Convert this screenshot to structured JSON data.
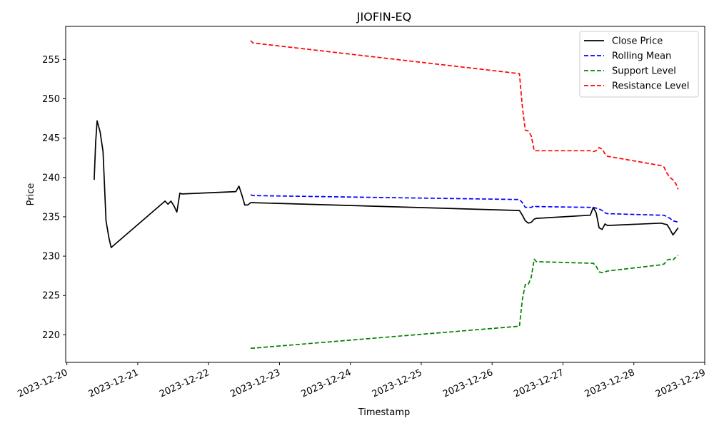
{
  "chart_data": {
    "type": "line",
    "title": "JIOFIN-EQ",
    "xlabel": "Timestamp",
    "ylabel": "Price",
    "x_axis_type": "date",
    "xlim": [
      "2023-12-19T23:36",
      "2023-12-29T00:00"
    ],
    "ylim": [
      216.5,
      259.2
    ],
    "x_ticks": [
      "2023-12-20",
      "2023-12-21",
      "2023-12-22",
      "2023-12-23",
      "2023-12-24",
      "2023-12-25",
      "2023-12-26",
      "2023-12-27",
      "2023-12-28",
      "2023-12-29"
    ],
    "y_ticks": [
      220,
      225,
      230,
      235,
      240,
      245,
      250,
      255
    ],
    "grid": false,
    "legend_position": "top-right",
    "series": [
      {
        "name": "Close Price",
        "color": "#000000",
        "dash": "solid",
        "points": [
          [
            "2023-12-20T09:15",
            239.7
          ],
          [
            "2023-12-20T09:45",
            244.5
          ],
          [
            "2023-12-20T10:15",
            247.2
          ],
          [
            "2023-12-20T11:15",
            245.8
          ],
          [
            "2023-12-20T12:15",
            243.3
          ],
          [
            "2023-12-20T13:15",
            234.5
          ],
          [
            "2023-12-20T14:15",
            232.3
          ],
          [
            "2023-12-20T15:00",
            231.1
          ],
          [
            "2023-12-21T09:15",
            237.0
          ],
          [
            "2023-12-21T10:15",
            236.6
          ],
          [
            "2023-12-21T11:15",
            237.0
          ],
          [
            "2023-12-21T12:15",
            236.4
          ],
          [
            "2023-12-21T13:15",
            235.6
          ],
          [
            "2023-12-21T14:15",
            238.0
          ],
          [
            "2023-12-21T15:00",
            237.9
          ],
          [
            "2023-12-22T09:15",
            238.2
          ],
          [
            "2023-12-22T10:15",
            238.9
          ],
          [
            "2023-12-22T11:15",
            237.8
          ],
          [
            "2023-12-22T12:15",
            236.5
          ],
          [
            "2023-12-22T13:15",
            236.5
          ],
          [
            "2023-12-22T14:15",
            236.8
          ],
          [
            "2023-12-22T15:00",
            236.8
          ],
          [
            "2023-12-26T09:15",
            235.8
          ],
          [
            "2023-12-26T10:15",
            235.2
          ],
          [
            "2023-12-26T11:15",
            234.5
          ],
          [
            "2023-12-26T12:15",
            234.2
          ],
          [
            "2023-12-26T13:15",
            234.3
          ],
          [
            "2023-12-26T14:15",
            234.7
          ],
          [
            "2023-12-26T15:00",
            234.8
          ],
          [
            "2023-12-27T09:15",
            235.2
          ],
          [
            "2023-12-27T10:15",
            236.2
          ],
          [
            "2023-12-27T11:15",
            235.5
          ],
          [
            "2023-12-27T12:15",
            233.6
          ],
          [
            "2023-12-27T13:15",
            233.4
          ],
          [
            "2023-12-27T14:15",
            234.1
          ],
          [
            "2023-12-27T15:00",
            233.9
          ],
          [
            "2023-12-28T09:15",
            234.2
          ],
          [
            "2023-12-28T10:15",
            234.1
          ],
          [
            "2023-12-28T11:15",
            234.0
          ],
          [
            "2023-12-28T12:15",
            233.4
          ],
          [
            "2023-12-28T13:15",
            232.7
          ],
          [
            "2023-12-28T14:15",
            233.2
          ],
          [
            "2023-12-28T15:00",
            233.6
          ]
        ]
      },
      {
        "name": "Rolling Mean",
        "color": "#0000ff",
        "dash": "dashed",
        "points": [
          [
            "2023-12-22T14:15",
            237.8
          ],
          [
            "2023-12-22T15:00",
            237.7
          ],
          [
            "2023-12-26T09:15",
            237.2
          ],
          [
            "2023-12-26T10:15",
            236.8
          ],
          [
            "2023-12-26T11:15",
            236.2
          ],
          [
            "2023-12-26T12:15",
            236.2
          ],
          [
            "2023-12-26T13:15",
            236.2
          ],
          [
            "2023-12-26T14:15",
            236.4
          ],
          [
            "2023-12-26T15:00",
            236.3
          ],
          [
            "2023-12-27T09:15",
            236.2
          ],
          [
            "2023-12-27T10:15",
            236.2
          ],
          [
            "2023-12-27T11:15",
            236.1
          ],
          [
            "2023-12-27T12:15",
            236.0
          ],
          [
            "2023-12-27T13:15",
            235.8
          ],
          [
            "2023-12-27T14:15",
            235.5
          ],
          [
            "2023-12-27T15:00",
            235.4
          ],
          [
            "2023-12-28T09:15",
            235.2
          ],
          [
            "2023-12-28T10:15",
            235.2
          ],
          [
            "2023-12-28T11:15",
            235.0
          ],
          [
            "2023-12-28T12:15",
            234.8
          ],
          [
            "2023-12-28T13:15",
            234.5
          ],
          [
            "2023-12-28T14:15",
            234.4
          ],
          [
            "2023-12-28T15:00",
            234.3
          ]
        ]
      },
      {
        "name": "Support Level",
        "color": "#008000",
        "dash": "dashed",
        "points": [
          [
            "2023-12-22T14:15",
            218.3
          ],
          [
            "2023-12-22T15:00",
            218.3
          ],
          [
            "2023-12-26T09:15",
            221.1
          ],
          [
            "2023-12-26T10:15",
            224.5
          ],
          [
            "2023-12-26T11:15",
            226.4
          ],
          [
            "2023-12-26T12:15",
            226.4
          ],
          [
            "2023-12-26T13:15",
            227.3
          ],
          [
            "2023-12-26T14:15",
            229.6
          ],
          [
            "2023-12-26T15:00",
            229.3
          ],
          [
            "2023-12-27T09:15",
            229.1
          ],
          [
            "2023-12-27T10:15",
            229.1
          ],
          [
            "2023-12-27T11:15",
            228.7
          ],
          [
            "2023-12-27T12:15",
            228.0
          ],
          [
            "2023-12-27T13:15",
            227.9
          ],
          [
            "2023-12-27T14:15",
            228.0
          ],
          [
            "2023-12-27T15:00",
            228.1
          ],
          [
            "2023-12-28T09:15",
            228.9
          ],
          [
            "2023-12-28T10:15",
            229.0
          ],
          [
            "2023-12-28T11:15",
            229.5
          ],
          [
            "2023-12-28T12:15",
            229.6
          ],
          [
            "2023-12-28T13:15",
            229.5
          ],
          [
            "2023-12-28T14:15",
            229.9
          ],
          [
            "2023-12-28T15:00",
            230.1
          ]
        ]
      },
      {
        "name": "Resistance Level",
        "color": "#ff0000",
        "dash": "dashed",
        "points": [
          [
            "2023-12-22T14:15",
            257.4
          ],
          [
            "2023-12-22T15:00",
            257.1
          ],
          [
            "2023-12-26T09:15",
            253.2
          ],
          [
            "2023-12-26T10:15",
            249.0
          ],
          [
            "2023-12-26T11:15",
            246.0
          ],
          [
            "2023-12-26T12:15",
            245.9
          ],
          [
            "2023-12-26T13:15",
            245.3
          ],
          [
            "2023-12-26T14:15",
            243.4
          ],
          [
            "2023-12-26T15:00",
            243.4
          ],
          [
            "2023-12-27T09:15",
            243.4
          ],
          [
            "2023-12-27T10:15",
            243.3
          ],
          [
            "2023-12-27T11:15",
            243.4
          ],
          [
            "2023-12-27T12:15",
            243.8
          ],
          [
            "2023-12-27T13:15",
            243.6
          ],
          [
            "2023-12-27T14:15",
            243.0
          ],
          [
            "2023-12-27T15:00",
            242.7
          ],
          [
            "2023-12-28T09:15",
            241.5
          ],
          [
            "2023-12-28T10:15",
            241.3
          ],
          [
            "2023-12-28T11:15",
            240.5
          ],
          [
            "2023-12-28T12:15",
            240.0
          ],
          [
            "2023-12-28T13:15",
            239.7
          ],
          [
            "2023-12-28T14:15",
            239.2
          ],
          [
            "2023-12-28T15:00",
            238.5
          ]
        ]
      }
    ]
  }
}
